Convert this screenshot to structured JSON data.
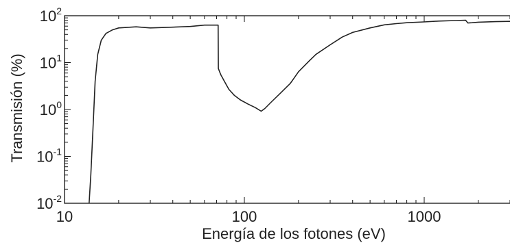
{
  "chart_data": {
    "type": "line",
    "title": "",
    "xlabel": "Energía de los fotones (eV)",
    "ylabel": "Transmisión (%)",
    "x_scale": "log",
    "y_scale": "log",
    "xlim": [
      10,
      3000
    ],
    "ylim": [
      0.01,
      100
    ],
    "x_ticks": [
      {
        "value": 10,
        "label": "10"
      },
      {
        "value": 100,
        "label": "100"
      },
      {
        "value": 1000,
        "label": "1000"
      }
    ],
    "y_ticks": [
      {
        "value": 0.01,
        "base": "10",
        "exp": "-2"
      },
      {
        "value": 0.1,
        "base": "10",
        "exp": "-1"
      },
      {
        "value": 1,
        "base": "10",
        "exp": "0"
      },
      {
        "value": 10,
        "base": "10",
        "exp": "1"
      },
      {
        "value": 100,
        "base": "10",
        "exp": "2"
      }
    ],
    "grid": false,
    "legend": "none",
    "series": [
      {
        "color": "#222222",
        "points": [
          [
            13.7,
            0.01
          ],
          [
            14.0,
            0.04
          ],
          [
            14.4,
            0.4
          ],
          [
            14.8,
            4
          ],
          [
            15.3,
            15
          ],
          [
            16,
            30
          ],
          [
            17,
            42
          ],
          [
            18.5,
            50
          ],
          [
            20,
            55
          ],
          [
            25,
            58
          ],
          [
            30,
            55
          ],
          [
            40,
            57
          ],
          [
            50,
            59
          ],
          [
            60,
            63
          ],
          [
            71.5,
            63
          ],
          [
            71.7,
            7.5
          ],
          [
            74,
            5.5
          ],
          [
            78,
            3.8
          ],
          [
            82,
            2.7
          ],
          [
            88,
            2.0
          ],
          [
            95,
            1.6
          ],
          [
            105,
            1.3
          ],
          [
            115,
            1.1
          ],
          [
            124,
            0.92
          ],
          [
            130,
            1.05
          ],
          [
            140,
            1.4
          ],
          [
            160,
            2.3
          ],
          [
            180,
            3.6
          ],
          [
            190,
            4.8
          ],
          [
            200,
            6.4
          ],
          [
            230,
            11
          ],
          [
            250,
            15
          ],
          [
            300,
            24
          ],
          [
            350,
            35
          ],
          [
            400,
            44
          ],
          [
            500,
            55
          ],
          [
            600,
            64
          ],
          [
            700,
            68
          ],
          [
            800,
            71
          ],
          [
            1000,
            74
          ],
          [
            1200,
            77
          ],
          [
            1500,
            79
          ],
          [
            1700,
            80
          ],
          [
            1750,
            70
          ],
          [
            1850,
            71
          ],
          [
            2000,
            73
          ],
          [
            2500,
            75
          ],
          [
            3000,
            76
          ]
        ]
      }
    ]
  }
}
